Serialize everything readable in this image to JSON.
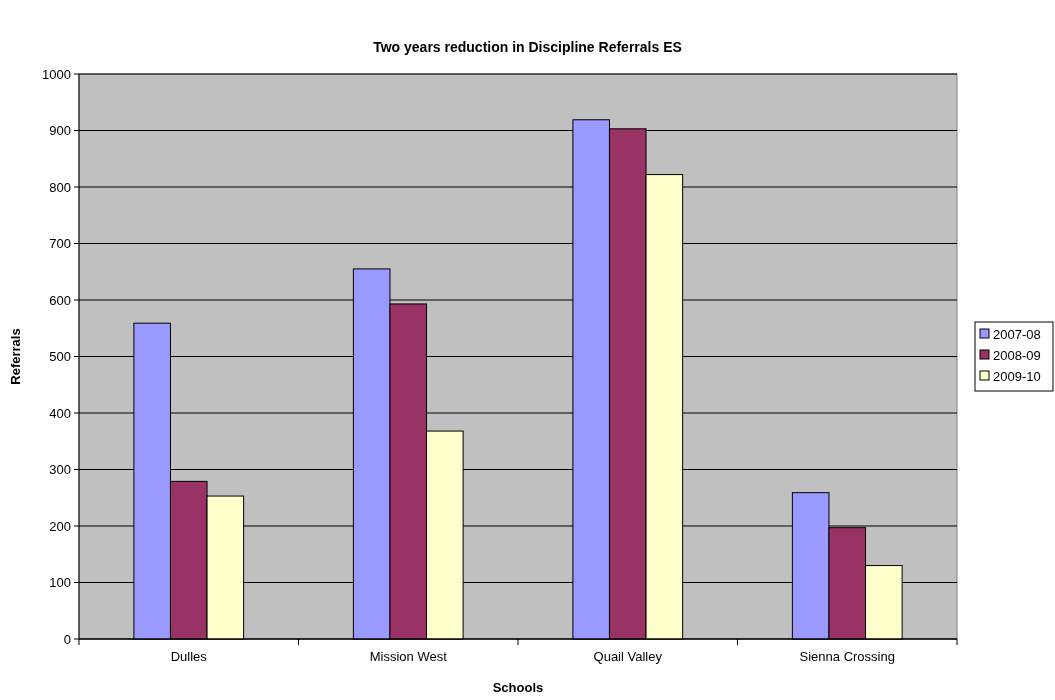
{
  "chart_data": {
    "type": "bar",
    "title": "Two years reduction in Discipline Referrals ES",
    "xlabel": "Schools",
    "ylabel": "Referrals",
    "categories": [
      "Dulles",
      "Mission West",
      "Quail Valley",
      "Sienna Crossing"
    ],
    "series": [
      {
        "name": "2007-08",
        "color": "#9999ff",
        "values": [
          559,
          655,
          919,
          259
        ]
      },
      {
        "name": "2008-09",
        "color": "#993366",
        "values": [
          279,
          593,
          903,
          197
        ]
      },
      {
        "name": "2009-10",
        "color": "#ffffcc",
        "values": [
          253,
          368,
          822,
          130
        ]
      }
    ],
    "ylim": [
      0,
      1000
    ],
    "yticks": [
      0,
      100,
      200,
      300,
      400,
      500,
      600,
      700,
      800,
      900,
      1000
    ],
    "grid": "y",
    "legend": "right"
  }
}
